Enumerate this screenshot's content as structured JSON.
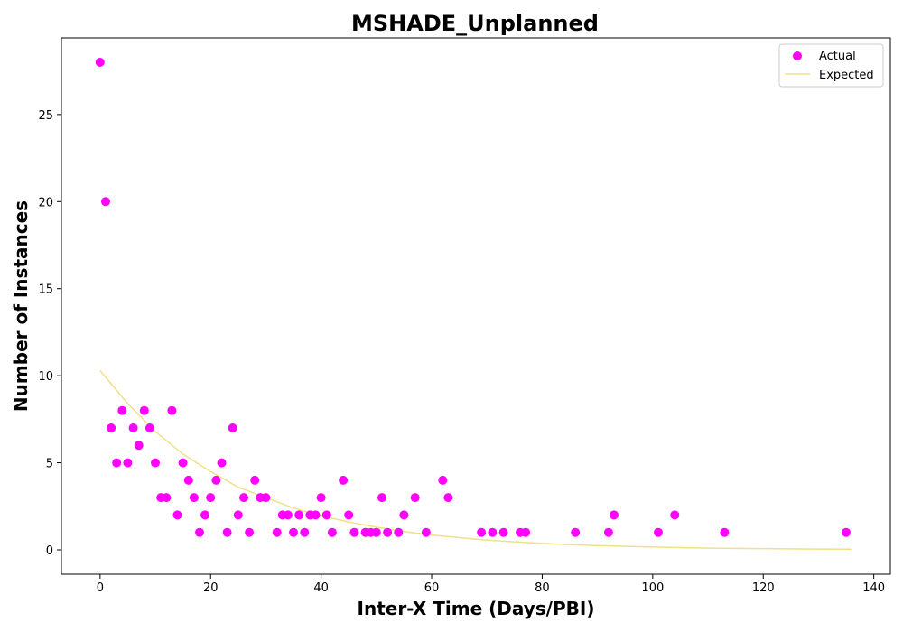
{
  "chart_data": {
    "type": "scatter",
    "title": "MSHADE_Unplanned",
    "xlabel": "Inter-X Time (Days/PBI)",
    "ylabel": "Number of Instances",
    "xlim": [
      -7,
      143
    ],
    "ylim": [
      -1.4,
      29.4
    ],
    "xticks": [
      0,
      20,
      40,
      60,
      80,
      100,
      120,
      140
    ],
    "yticks": [
      0,
      5,
      10,
      15,
      20,
      25
    ],
    "grid": false,
    "legend_position": "top-right",
    "series": [
      {
        "name": "Actual",
        "kind": "scatter",
        "color": "#ff00ff",
        "x": [
          0,
          1,
          2,
          3,
          4,
          5,
          6,
          7,
          8,
          9,
          10,
          11,
          12,
          13,
          14,
          15,
          16,
          17,
          18,
          19,
          20,
          21,
          22,
          23,
          24,
          25,
          26,
          27,
          28,
          29,
          30,
          32,
          33,
          34,
          35,
          36,
          37,
          38,
          39,
          40,
          41,
          42,
          44,
          45,
          46,
          48,
          49,
          50,
          51,
          52,
          54,
          55,
          57,
          59,
          62,
          63,
          69,
          71,
          73,
          76,
          77,
          86,
          92,
          93,
          101,
          104,
          113,
          135
        ],
        "y": [
          28,
          20,
          7,
          5,
          8,
          5,
          7,
          6,
          8,
          7,
          5,
          3,
          3,
          8,
          2,
          5,
          4,
          3,
          1,
          2,
          3,
          4,
          5,
          1,
          7,
          2,
          3,
          1,
          4,
          3,
          3,
          1,
          2,
          2,
          1,
          2,
          1,
          2,
          2,
          3,
          2,
          1,
          4,
          2,
          1,
          1,
          1,
          1,
          3,
          1,
          1,
          2,
          3,
          1,
          4,
          3,
          1,
          1,
          1,
          1,
          1,
          1,
          1,
          2,
          1,
          2,
          1,
          1
        ]
      },
      {
        "name": "Expected",
        "kind": "line",
        "color": "#f0e08a",
        "x": [
          0,
          5,
          10,
          15,
          20,
          25,
          30,
          35,
          40,
          45,
          50,
          55,
          60,
          65,
          70,
          75,
          80,
          85,
          90,
          95,
          100,
          105,
          110,
          115,
          120,
          125,
          130,
          136
        ],
        "y": [
          10.3,
          8.4,
          6.8,
          5.5,
          4.5,
          3.6,
          3.0,
          2.4,
          1.95,
          1.6,
          1.3,
          1.05,
          0.85,
          0.7,
          0.56,
          0.46,
          0.37,
          0.3,
          0.25,
          0.2,
          0.16,
          0.13,
          0.1,
          0.085,
          0.07,
          0.055,
          0.045,
          0.035
        ]
      }
    ]
  }
}
